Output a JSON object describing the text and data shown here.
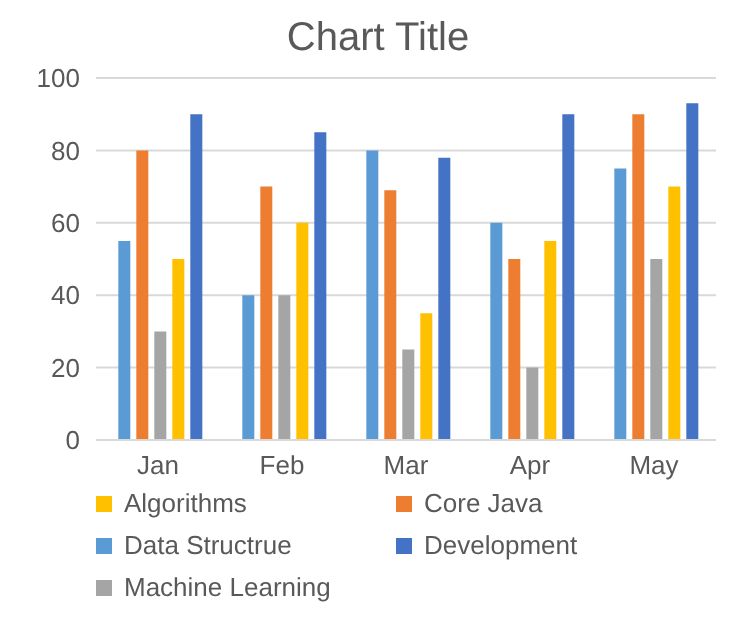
{
  "chart_data": {
    "type": "bar",
    "title": "Chart Title",
    "categories": [
      "Jan",
      "Feb",
      "Mar",
      "Apr",
      "May"
    ],
    "series": [
      {
        "name": "Data Structrue",
        "color": "#5b9bd5",
        "values": [
          55,
          40,
          80,
          60,
          75
        ]
      },
      {
        "name": "Core Java",
        "color": "#ed7d31",
        "values": [
          80,
          70,
          69,
          50,
          90
        ]
      },
      {
        "name": "Machine Learning",
        "color": "#a5a5a5",
        "values": [
          30,
          40,
          25,
          20,
          50
        ]
      },
      {
        "name": "Algorithms",
        "color": "#ffc000",
        "values": [
          50,
          60,
          35,
          55,
          70
        ]
      },
      {
        "name": "Development",
        "color": "#4472c4",
        "values": [
          90,
          85,
          78,
          90,
          93
        ]
      }
    ],
    "ylim": [
      0,
      100
    ],
    "yticks": [
      0,
      20,
      40,
      60,
      80,
      100
    ],
    "grid": "y",
    "legend": "bottom"
  }
}
